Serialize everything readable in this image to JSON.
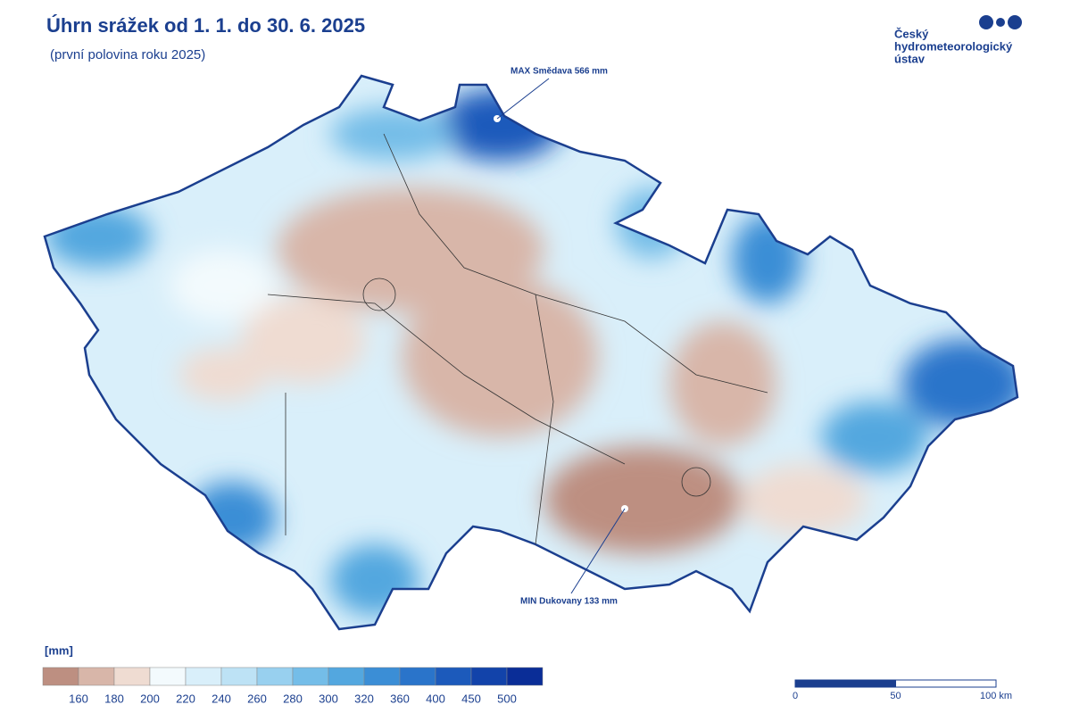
{
  "header": {
    "title": "Úhrn srážek od 1. 1. do 30. 6. 2025",
    "subtitle": "(první polovina roku 2025)"
  },
  "logo": {
    "lines": [
      "Český",
      "hydrometeorologický",
      "ústav"
    ]
  },
  "annotations": {
    "max": "MAX Smědava 566 mm",
    "min": "MIN Dukovany 133 mm"
  },
  "legend": {
    "unit": "[mm]",
    "colors": [
      "#bd8f81",
      "#d8b6a9",
      "#efdcd2",
      "#f3fafd",
      "#d9effa",
      "#bde2f5",
      "#98d0ef",
      "#74bde8",
      "#53a7df",
      "#3b8ed6",
      "#2a74ca",
      "#1c5abb",
      "#1243aa",
      "#0a2d97"
    ],
    "ticks": [
      160,
      180,
      200,
      220,
      240,
      260,
      280,
      300,
      320,
      360,
      400,
      450,
      500
    ]
  },
  "scale_bar": {
    "ticks": [
      0,
      50,
      {
        "value": 100,
        "label": "100 km"
      }
    ]
  }
}
